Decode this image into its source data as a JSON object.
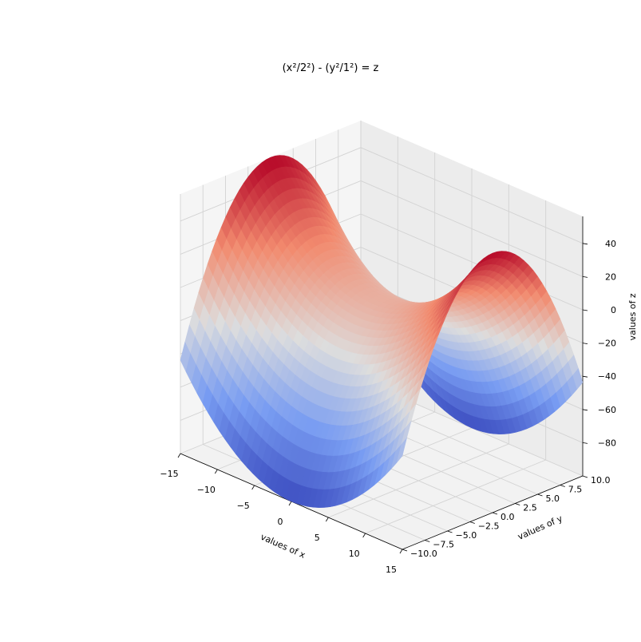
{
  "chart_data": {
    "type": "surface",
    "title": "(x²/2²) - (y²/1²) = z",
    "equation": {
      "a": 2,
      "b": 1
    },
    "x": {
      "label": "values of x",
      "range": [
        -15,
        15
      ],
      "ticks": [
        -15,
        -10,
        -5,
        0,
        5,
        10,
        15
      ]
    },
    "y": {
      "label": "values of y",
      "range": [
        -10,
        10
      ],
      "ticks": [
        -10,
        -7.5,
        -5,
        -2.5,
        0,
        2.5,
        5,
        7.5,
        10
      ],
      "tick_labels": [
        "−10.0",
        "−7.5",
        "−5.0",
        "−2.5",
        "0.0",
        "2.5",
        "5.0",
        "7.5",
        "10.0"
      ]
    },
    "z": {
      "label": "values of z",
      "range": [
        -100,
        56.25
      ],
      "ticks": [
        -80,
        -60,
        -40,
        -20,
        0,
        20,
        40
      ],
      "tick_labels": [
        "−80",
        "−60",
        "−40",
        "−20",
        "0",
        "20",
        "40"
      ]
    },
    "grid": true,
    "colormap": {
      "name": "coolwarm",
      "low": "#3b4cc0",
      "mid": "#dddddd",
      "high": "#b40426"
    },
    "pane_color": "#f2f2f2",
    "x_tick_labels": [
      "−15",
      "−10",
      "−5",
      "0",
      "5",
      "10",
      "15"
    ]
  }
}
